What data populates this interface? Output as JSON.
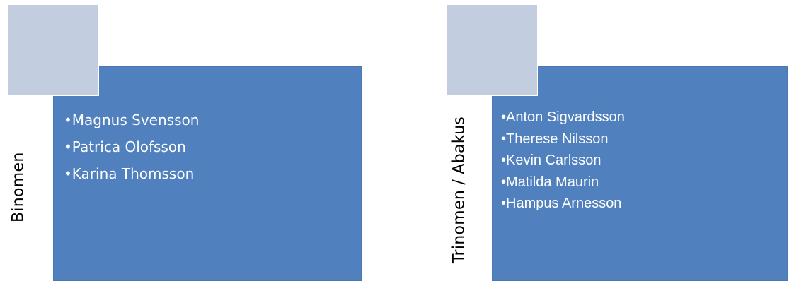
{
  "groups": [
    {
      "label": "Binomen",
      "members": [
        "Magnus Svensson",
        "Patrica Olofsson",
        "Karina Thomsson"
      ]
    },
    {
      "label": "Trinomen / Abakus",
      "members": [
        "Anton Sigvardsson",
        "Therese Nilsson",
        "Kevin Carlsson",
        "Matilda Maurin",
        "Hampus Arnesson"
      ]
    }
  ],
  "colors": {
    "box_fill": "#5081be",
    "accent_square": "#c3cde0",
    "text_on_box": "#ffffff",
    "label_text": "#000000"
  }
}
